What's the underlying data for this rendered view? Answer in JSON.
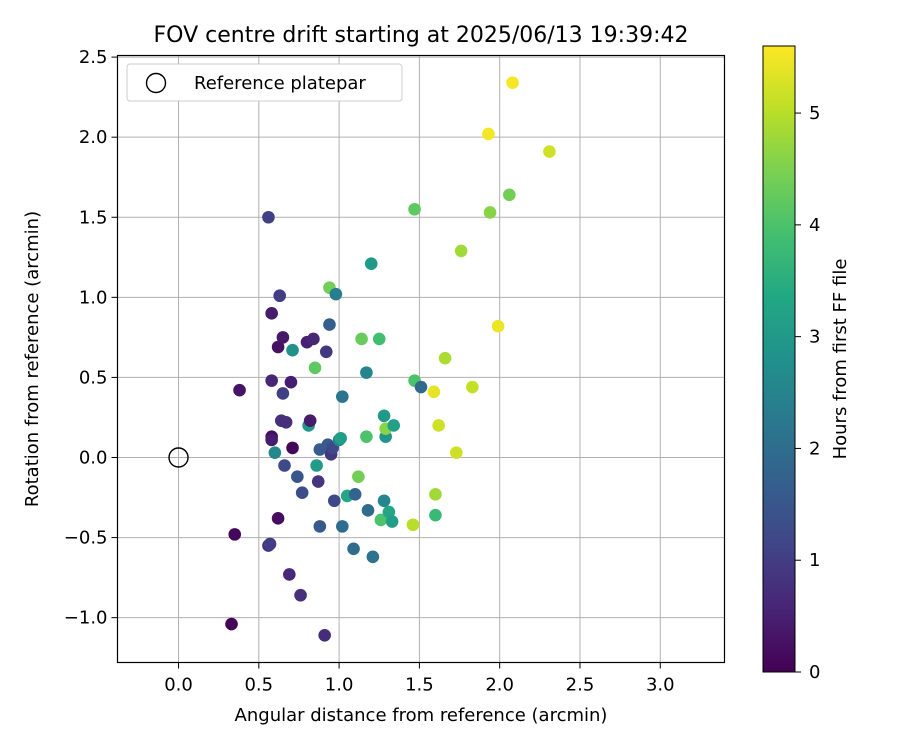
{
  "chart_data": {
    "type": "scatter",
    "title": "FOV centre drift starting at 2025/06/13 19:39:42",
    "xlabel": "Angular distance from reference (arcmin)",
    "ylabel": "Rotation from reference (arcmin)",
    "xlim": [
      -0.38,
      3.4
    ],
    "ylim": [
      -1.28,
      2.51
    ],
    "xticks": [
      0.0,
      0.5,
      1.0,
      1.5,
      2.0,
      2.5,
      3.0
    ],
    "xtick_labels": [
      "0.0",
      "0.5",
      "1.0",
      "1.5",
      "2.0",
      "2.5",
      "3.0"
    ],
    "yticks": [
      -1.0,
      -0.5,
      0.0,
      0.5,
      1.0,
      1.5,
      2.0,
      2.5
    ],
    "ytick_labels": [
      "−1.0",
      "−0.5",
      "0.0",
      "0.5",
      "1.0",
      "1.5",
      "2.0",
      "2.5"
    ],
    "grid": true,
    "legend": {
      "position": "top-left",
      "label": "Reference platepar",
      "marker": "open-circle"
    },
    "reference_point": {
      "x": 0.0,
      "y": 0.0
    },
    "colorbar": {
      "label": "Hours from first FF file",
      "range": [
        0,
        5.6
      ],
      "ticks": [
        0,
        1,
        2,
        3,
        4,
        5
      ],
      "tick_labels": [
        "0",
        "1",
        "2",
        "3",
        "4",
        "5"
      ],
      "colormap": "viridis"
    },
    "points": [
      {
        "x": 0.33,
        "y": -1.04,
        "c": 0.05
      },
      {
        "x": 0.35,
        "y": -0.48,
        "c": 0.1
      },
      {
        "x": 0.38,
        "y": 0.42,
        "c": 0.3
      },
      {
        "x": 0.56,
        "y": 1.5,
        "c": 1.05
      },
      {
        "x": 0.56,
        "y": -0.55,
        "c": 0.8
      },
      {
        "x": 0.57,
        "y": -0.54,
        "c": 1.0
      },
      {
        "x": 0.58,
        "y": 0.9,
        "c": 0.4
      },
      {
        "x": 0.58,
        "y": 0.48,
        "c": 0.6
      },
      {
        "x": 0.58,
        "y": 0.13,
        "c": 0.2
      },
      {
        "x": 0.58,
        "y": 0.11,
        "c": 0.45
      },
      {
        "x": 0.6,
        "y": 0.03,
        "c": 2.6
      },
      {
        "x": 0.62,
        "y": -0.38,
        "c": 0.2
      },
      {
        "x": 0.62,
        "y": 0.69,
        "c": 0.25
      },
      {
        "x": 0.63,
        "y": 1.01,
        "c": 1.0
      },
      {
        "x": 0.64,
        "y": 0.23,
        "c": 0.75
      },
      {
        "x": 0.65,
        "y": 0.75,
        "c": 0.35
      },
      {
        "x": 0.65,
        "y": 0.4,
        "c": 1.05
      },
      {
        "x": 0.66,
        "y": -0.05,
        "c": 1.25
      },
      {
        "x": 0.67,
        "y": 0.22,
        "c": 0.75
      },
      {
        "x": 0.69,
        "y": -0.73,
        "c": 0.65
      },
      {
        "x": 0.7,
        "y": 0.47,
        "c": 0.45
      },
      {
        "x": 0.71,
        "y": 0.06,
        "c": 0.1
      },
      {
        "x": 0.71,
        "y": 0.67,
        "c": 2.8
      },
      {
        "x": 0.74,
        "y": -0.12,
        "c": 1.5
      },
      {
        "x": 0.76,
        "y": -0.86,
        "c": 0.75
      },
      {
        "x": 0.77,
        "y": -0.22,
        "c": 1.3
      },
      {
        "x": 0.8,
        "y": 0.72,
        "c": 0.5
      },
      {
        "x": 0.81,
        "y": 0.2,
        "c": 3.0
      },
      {
        "x": 0.82,
        "y": 0.23,
        "c": 0.4
      },
      {
        "x": 0.84,
        "y": 0.74,
        "c": 0.6
      },
      {
        "x": 0.85,
        "y": 0.56,
        "c": 4.2
      },
      {
        "x": 0.86,
        "y": -0.05,
        "c": 3.05
      },
      {
        "x": 0.87,
        "y": -0.15,
        "c": 0.85
      },
      {
        "x": 0.88,
        "y": 0.05,
        "c": 1.6
      },
      {
        "x": 0.88,
        "y": -0.43,
        "c": 1.55
      },
      {
        "x": 0.91,
        "y": -1.11,
        "c": 0.7
      },
      {
        "x": 0.92,
        "y": 0.66,
        "c": 0.9
      },
      {
        "x": 0.93,
        "y": 0.08,
        "c": 1.6
      },
      {
        "x": 0.94,
        "y": 0.83,
        "c": 1.7
      },
      {
        "x": 0.94,
        "y": 1.06,
        "c": 4.4
      },
      {
        "x": 0.95,
        "y": 0.02,
        "c": 0.9
      },
      {
        "x": 0.96,
        "y": 0.06,
        "c": 1.2
      },
      {
        "x": 0.97,
        "y": -0.27,
        "c": 1.2
      },
      {
        "x": 0.98,
        "y": 1.02,
        "c": 2.35
      },
      {
        "x": 1.0,
        "y": 0.11,
        "c": 2.5
      },
      {
        "x": 1.01,
        "y": 0.12,
        "c": 3.1
      },
      {
        "x": 1.02,
        "y": 0.38,
        "c": 2.2
      },
      {
        "x": 1.02,
        "y": -0.43,
        "c": 2.0
      },
      {
        "x": 1.05,
        "y": -0.24,
        "c": 3.3
      },
      {
        "x": 1.09,
        "y": -0.57,
        "c": 2.0
      },
      {
        "x": 1.1,
        "y": -0.23,
        "c": 1.8
      },
      {
        "x": 1.12,
        "y": -0.12,
        "c": 4.4
      },
      {
        "x": 1.14,
        "y": 0.74,
        "c": 4.3
      },
      {
        "x": 1.17,
        "y": 0.53,
        "c": 2.5
      },
      {
        "x": 1.17,
        "y": 0.13,
        "c": 4.0
      },
      {
        "x": 1.18,
        "y": -0.33,
        "c": 1.95
      },
      {
        "x": 1.2,
        "y": 1.21,
        "c": 3.0
      },
      {
        "x": 1.21,
        "y": -0.62,
        "c": 2.1
      },
      {
        "x": 1.25,
        "y": 0.74,
        "c": 3.9
      },
      {
        "x": 1.26,
        "y": -0.39,
        "c": 4.0
      },
      {
        "x": 1.28,
        "y": 0.26,
        "c": 3.0
      },
      {
        "x": 1.28,
        "y": -0.27,
        "c": 2.55
      },
      {
        "x": 1.29,
        "y": 0.13,
        "c": 2.9
      },
      {
        "x": 1.29,
        "y": 0.18,
        "c": 4.6
      },
      {
        "x": 1.31,
        "y": -0.34,
        "c": 3.3
      },
      {
        "x": 1.33,
        "y": -0.4,
        "c": 3.1
      },
      {
        "x": 1.34,
        "y": 0.2,
        "c": 3.2
      },
      {
        "x": 1.46,
        "y": -0.42,
        "c": 5.0
      },
      {
        "x": 1.47,
        "y": 1.55,
        "c": 4.2
      },
      {
        "x": 1.47,
        "y": 0.48,
        "c": 4.0
      },
      {
        "x": 1.51,
        "y": 0.44,
        "c": 1.9
      },
      {
        "x": 1.59,
        "y": 0.41,
        "c": 5.4
      },
      {
        "x": 1.6,
        "y": -0.23,
        "c": 4.8
      },
      {
        "x": 1.6,
        "y": -0.36,
        "c": 3.75
      },
      {
        "x": 1.62,
        "y": 0.2,
        "c": 5.2
      },
      {
        "x": 1.66,
        "y": 0.62,
        "c": 4.9
      },
      {
        "x": 1.73,
        "y": 0.03,
        "c": 5.2
      },
      {
        "x": 1.76,
        "y": 1.29,
        "c": 4.8
      },
      {
        "x": 1.83,
        "y": 0.44,
        "c": 5.1
      },
      {
        "x": 1.93,
        "y": 2.02,
        "c": 5.5
      },
      {
        "x": 1.94,
        "y": 1.53,
        "c": 4.6
      },
      {
        "x": 1.99,
        "y": 0.82,
        "c": 5.45
      },
      {
        "x": 2.06,
        "y": 1.64,
        "c": 4.4
      },
      {
        "x": 2.08,
        "y": 2.34,
        "c": 5.55
      },
      {
        "x": 2.31,
        "y": 1.91,
        "c": 5.2
      }
    ]
  }
}
